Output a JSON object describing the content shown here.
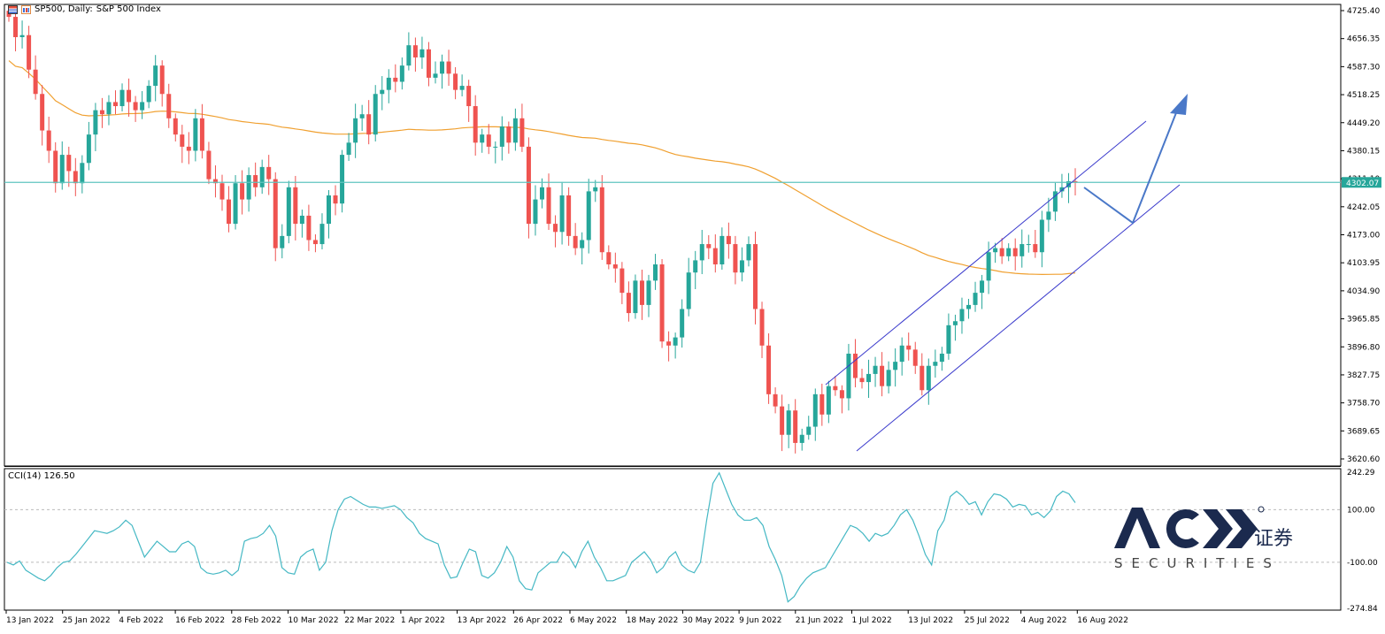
{
  "header": {
    "symbol": "SP500, Daily:",
    "name": "S&P 500 Index"
  },
  "cci": {
    "label": "CCI(14) 126.50",
    "ticks": [
      "242.29",
      "100.00",
      "-100.00",
      "-274.84"
    ],
    "levels": [
      242.29,
      100,
      -100,
      -274.84
    ],
    "points": [
      [
        0,
        -100
      ],
      [
        1,
        -110
      ],
      [
        2,
        -95
      ],
      [
        3,
        -130
      ],
      [
        4,
        -145
      ],
      [
        5,
        -160
      ],
      [
        6,
        -170
      ],
      [
        7,
        -150
      ],
      [
        8,
        -120
      ],
      [
        9,
        -100
      ],
      [
        10,
        -95
      ],
      [
        11,
        -70
      ],
      [
        12,
        -40
      ],
      [
        13,
        -10
      ],
      [
        14,
        20
      ],
      [
        15,
        15
      ],
      [
        16,
        10
      ],
      [
        17,
        20
      ],
      [
        18,
        35
      ],
      [
        19,
        60
      ],
      [
        20,
        40
      ],
      [
        21,
        -20
      ],
      [
        22,
        -80
      ],
      [
        23,
        -50
      ],
      [
        24,
        -20
      ],
      [
        25,
        -40
      ],
      [
        26,
        -60
      ],
      [
        27,
        -60
      ],
      [
        28,
        -30
      ],
      [
        29,
        -20
      ],
      [
        30,
        -40
      ],
      [
        31,
        -120
      ],
      [
        32,
        -140
      ],
      [
        33,
        -145
      ],
      [
        34,
        -140
      ],
      [
        35,
        -130
      ],
      [
        36,
        -150
      ],
      [
        37,
        -130
      ],
      [
        38,
        -20
      ],
      [
        39,
        -10
      ],
      [
        40,
        -5
      ],
      [
        41,
        10
      ],
      [
        42,
        40
      ],
      [
        43,
        0
      ],
      [
        44,
        -120
      ],
      [
        45,
        -140
      ],
      [
        46,
        -145
      ],
      [
        47,
        -80
      ],
      [
        48,
        -60
      ],
      [
        49,
        -50
      ],
      [
        50,
        -130
      ],
      [
        51,
        -100
      ],
      [
        52,
        20
      ],
      [
        53,
        100
      ],
      [
        54,
        140
      ],
      [
        55,
        150
      ],
      [
        56,
        135
      ],
      [
        57,
        120
      ],
      [
        58,
        110
      ],
      [
        59,
        110
      ],
      [
        60,
        105
      ],
      [
        61,
        110
      ],
      [
        62,
        115
      ],
      [
        63,
        100
      ],
      [
        64,
        70
      ],
      [
        65,
        50
      ],
      [
        66,
        10
      ],
      [
        67,
        -10
      ],
      [
        68,
        -20
      ],
      [
        69,
        -30
      ],
      [
        70,
        -110
      ],
      [
        71,
        -160
      ],
      [
        72,
        -155
      ],
      [
        73,
        -100
      ],
      [
        74,
        -50
      ],
      [
        75,
        -60
      ],
      [
        76,
        -150
      ],
      [
        77,
        -160
      ],
      [
        78,
        -140
      ],
      [
        79,
        -100
      ],
      [
        80,
        -40
      ],
      [
        81,
        -80
      ],
      [
        82,
        -170
      ],
      [
        83,
        -200
      ],
      [
        84,
        -205
      ],
      [
        85,
        -140
      ],
      [
        86,
        -120
      ],
      [
        87,
        -100
      ],
      [
        88,
        -100
      ],
      [
        89,
        -60
      ],
      [
        90,
        -80
      ],
      [
        91,
        -120
      ],
      [
        92,
        -60
      ],
      [
        93,
        -20
      ],
      [
        94,
        -80
      ],
      [
        95,
        -120
      ],
      [
        96,
        -170
      ],
      [
        97,
        -170
      ],
      [
        98,
        -160
      ],
      [
        99,
        -150
      ],
      [
        100,
        -100
      ],
      [
        101,
        -80
      ],
      [
        102,
        -60
      ],
      [
        103,
        -90
      ],
      [
        104,
        -140
      ],
      [
        105,
        -120
      ],
      [
        106,
        -80
      ],
      [
        107,
        -60
      ],
      [
        108,
        -110
      ],
      [
        109,
        -130
      ],
      [
        110,
        -140
      ],
      [
        111,
        -100
      ],
      [
        112,
        60
      ],
      [
        113,
        200
      ],
      [
        114,
        240
      ],
      [
        115,
        180
      ],
      [
        116,
        120
      ],
      [
        117,
        80
      ],
      [
        118,
        60
      ],
      [
        119,
        60
      ],
      [
        120,
        70
      ],
      [
        121,
        40
      ],
      [
        122,
        -40
      ],
      [
        123,
        -90
      ],
      [
        124,
        -150
      ],
      [
        125,
        -250
      ],
      [
        126,
        -230
      ],
      [
        127,
        -190
      ],
      [
        128,
        -160
      ],
      [
        129,
        -140
      ],
      [
        130,
        -130
      ],
      [
        131,
        -120
      ],
      [
        132,
        -80
      ],
      [
        133,
        -40
      ],
      [
        134,
        0
      ],
      [
        135,
        40
      ],
      [
        136,
        30
      ],
      [
        137,
        10
      ],
      [
        138,
        -20
      ],
      [
        139,
        10
      ],
      [
        140,
        0
      ],
      [
        141,
        10
      ],
      [
        142,
        40
      ],
      [
        143,
        80
      ],
      [
        144,
        100
      ],
      [
        145,
        60
      ],
      [
        146,
        0
      ],
      [
        147,
        -70
      ],
      [
        148,
        -110
      ],
      [
        149,
        20
      ],
      [
        150,
        60
      ],
      [
        151,
        150
      ],
      [
        152,
        170
      ],
      [
        153,
        150
      ],
      [
        154,
        120
      ],
      [
        155,
        130
      ],
      [
        156,
        80
      ],
      [
        157,
        130
      ],
      [
        158,
        160
      ],
      [
        159,
        155
      ],
      [
        160,
        140
      ],
      [
        161,
        110
      ],
      [
        162,
        120
      ],
      [
        163,
        115
      ],
      [
        164,
        80
      ],
      [
        165,
        90
      ],
      [
        166,
        70
      ],
      [
        167,
        95
      ],
      [
        168,
        150
      ],
      [
        169,
        170
      ],
      [
        170,
        160
      ],
      [
        171,
        126.5
      ]
    ]
  },
  "price_axis": {
    "ticks": [
      "4725.40",
      "4656.35",
      "4587.30",
      "4518.25",
      "4449.20",
      "4380.15",
      "4311.10",
      "4242.05",
      "4173.00",
      "4103.95",
      "4034.90",
      "3965.85",
      "3896.80",
      "3827.75",
      "3758.70",
      "3689.65",
      "3620.60"
    ],
    "current_price": "4302.07",
    "current_value": 4302.07
  },
  "chart_data": {
    "type": "candlestick",
    "title": "SP500, Daily: S&P 500 Index",
    "ylim": [
      3620.6,
      4725.4
    ],
    "x_tick_labels": [
      "13 Jan 2022",
      "25 Jan 2022",
      "4 Feb 2022",
      "16 Feb 2022",
      "28 Feb 2022",
      "10 Mar 2022",
      "22 Mar 2022",
      "1 Apr 2022",
      "13 Apr 2022",
      "26 Apr 2022",
      "6 May 2022",
      "18 May 2022",
      "30 May 2022",
      "9 Jun 2022",
      "21 Jun 2022",
      "1 Jul 2022",
      "13 Jul 2022",
      "25 Jul 2022",
      "4 Aug 2022",
      "16 Aug 2022"
    ],
    "candles_close": [
      4710,
      4660,
      4665,
      4580,
      4520,
      4430,
      4380,
      4300,
      4370,
      4330,
      4300,
      4350,
      4420,
      4480,
      4470,
      4500,
      4490,
      4530,
      4500,
      4480,
      4500,
      4540,
      4590,
      4520,
      4460,
      4420,
      4390,
      4380,
      4460,
      4380,
      4310,
      4300,
      4260,
      4200,
      4300,
      4260,
      4320,
      4290,
      4340,
      4310,
      4140,
      4170,
      4290,
      4200,
      4220,
      4160,
      4150,
      4200,
      4270,
      4250,
      4370,
      4400,
      4460,
      4470,
      4420,
      4520,
      4530,
      4560,
      4550,
      4590,
      4640,
      4610,
      4630,
      4560,
      4570,
      4600,
      4570,
      4530,
      4540,
      4490,
      4400,
      4420,
      4390,
      4390,
      4440,
      4400,
      4460,
      4390,
      4200,
      4260,
      4290,
      4200,
      4180,
      4270,
      4170,
      4140,
      4160,
      4280,
      4290,
      4130,
      4100,
      4090,
      4030,
      3980,
      4060,
      4000,
      4060,
      4100,
      3910,
      3900,
      3920,
      3990,
      4080,
      4110,
      4150,
      4140,
      4100,
      4170,
      4150,
      4080,
      4110,
      4150,
      3990,
      3900,
      3780,
      3750,
      3680,
      3740,
      3660,
      3680,
      3700,
      3780,
      3730,
      3800,
      3790,
      3770,
      3880,
      3820,
      3810,
      3830,
      3850,
      3800,
      3840,
      3860,
      3900,
      3890,
      3850,
      3790,
      3850,
      3860,
      3880,
      3950,
      3960,
      3990,
      4000,
      4030,
      4060,
      4130,
      4140,
      4120,
      4140,
      4120,
      4150,
      4150,
      4130,
      4210,
      4230,
      4280,
      4290,
      4305,
      4302
    ],
    "ma_line": {
      "name": "",
      "color": "#f0a030"
    },
    "channel": {
      "color": "#3a3acc"
    },
    "arrow": {
      "color": "#4a78c8"
    }
  },
  "watermark": {
    "brand": "ACY",
    "sub": "SECURITIES",
    "cn": "证券"
  },
  "colors": {
    "up": "#26a69a",
    "down": "#ef5350",
    "cci": "#45b8c4",
    "hline": "#5fc4bf"
  }
}
